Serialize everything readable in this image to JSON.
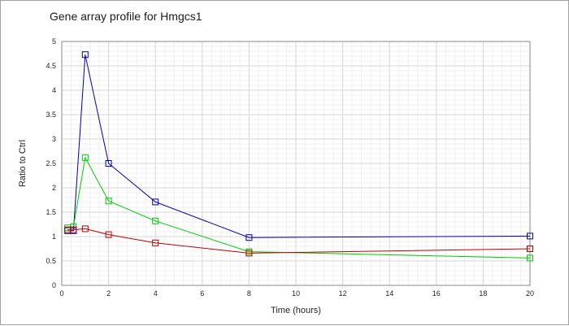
{
  "chart_data": {
    "type": "line",
    "title": "Gene array profile for Hmgcs1",
    "xlabel": "Time (hours)",
    "ylabel": "Ratio to Ctrl",
    "xlim": [
      0,
      20
    ],
    "ylim": [
      0,
      5
    ],
    "x_ticks": [
      "0",
      "2",
      "4",
      "6",
      "8",
      "10",
      "12",
      "14",
      "16",
      "18",
      "20"
    ],
    "y_ticks": [
      "0",
      "0.5",
      "1",
      "1.5",
      "2",
      "2.5",
      "3",
      "3.5",
      "4",
      "4.5",
      "5"
    ],
    "grid": true,
    "series": [
      {
        "color": "#0000b0",
        "x": [
          0.25,
          0.5,
          1,
          2,
          4,
          8,
          20
        ],
        "y": [
          1.12,
          1.12,
          4.73,
          2.5,
          1.71,
          0.98,
          1.01
        ]
      },
      {
        "color": "#00cc00",
        "x": [
          0.25,
          0.5,
          1,
          2,
          4,
          8,
          20
        ],
        "y": [
          1.18,
          1.2,
          2.62,
          1.73,
          1.32,
          0.69,
          0.56
        ]
      },
      {
        "color": "#c00000",
        "x": [
          0.25,
          0.5,
          1,
          2,
          4,
          8,
          20
        ],
        "y": [
          1.14,
          1.14,
          1.16,
          1.04,
          0.87,
          0.66,
          0.75
        ]
      }
    ]
  }
}
